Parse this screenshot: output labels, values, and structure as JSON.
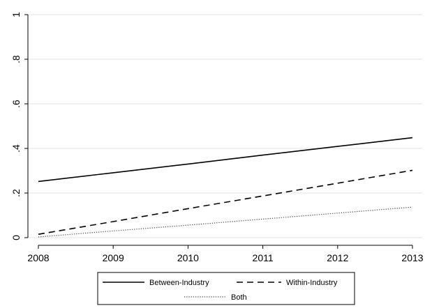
{
  "chart_data": {
    "type": "line",
    "x": [
      2008,
      2009,
      2010,
      2011,
      2012,
      2013
    ],
    "xlim": [
      2008,
      2013
    ],
    "ylim": [
      0,
      1
    ],
    "x_ticks": [
      2008,
      2009,
      2010,
      2011,
      2012,
      2013
    ],
    "y_ticks": [
      {
        "value": 0,
        "label": "0"
      },
      {
        "value": 0.2,
        "label": ".2"
      },
      {
        "value": 0.4,
        "label": ".4"
      },
      {
        "value": 0.6,
        "label": ".6"
      },
      {
        "value": 0.8,
        "label": ".8"
      },
      {
        "value": 1,
        "label": "1"
      }
    ],
    "grid": true,
    "legend_position": "bottom",
    "series": [
      {
        "name": "Between-Industry",
        "style": "solid",
        "color": "#000000",
        "values": [
          0.252,
          0.291,
          0.33,
          0.37,
          0.409,
          0.448
        ]
      },
      {
        "name": "Within-Industry",
        "style": "dashed",
        "color": "#000000",
        "values": [
          0.015,
          0.072,
          0.13,
          0.187,
          0.244,
          0.302
        ]
      },
      {
        "name": "Both",
        "style": "dotted",
        "color": "#444444",
        "values": [
          0.003,
          0.03,
          0.056,
          0.083,
          0.11,
          0.137
        ]
      }
    ]
  }
}
